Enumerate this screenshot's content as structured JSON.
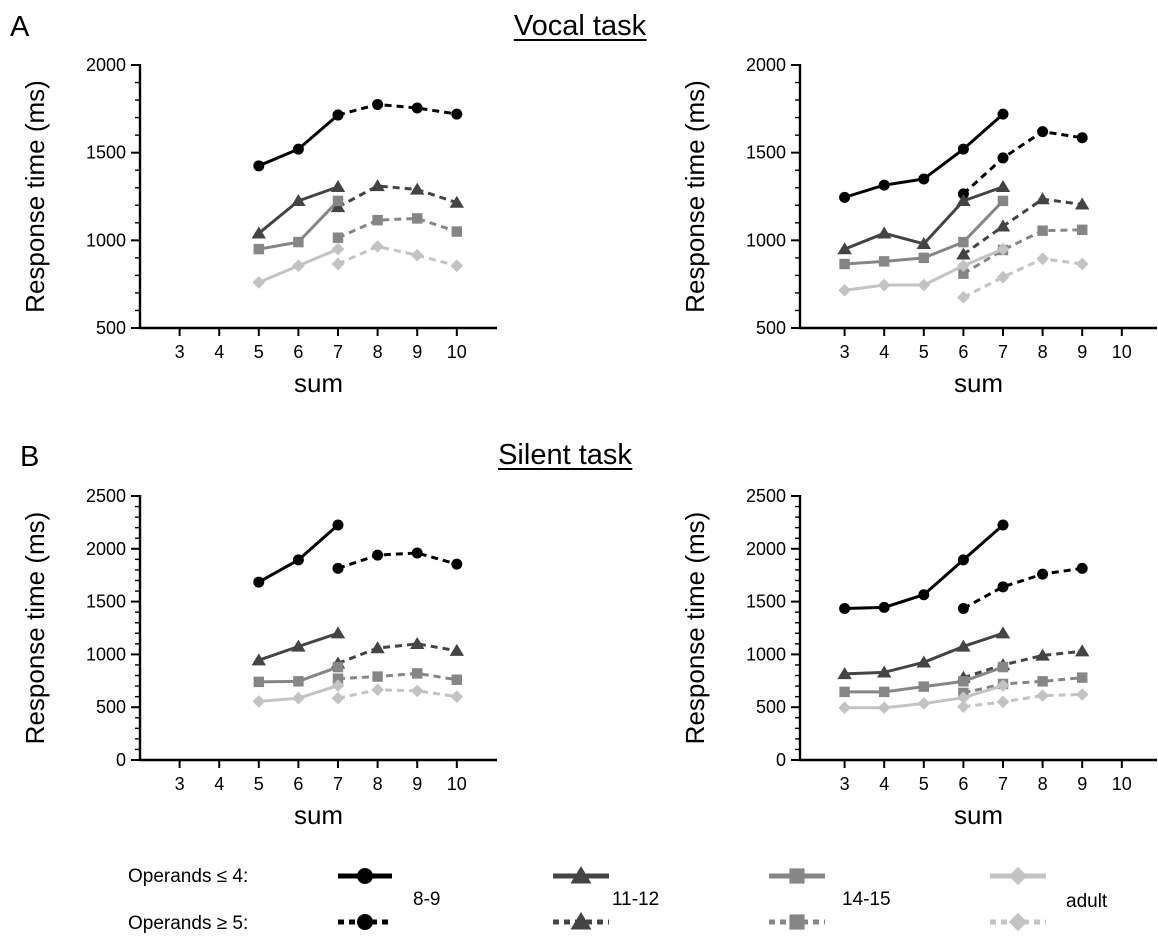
{
  "panel_a": {
    "letter": "A",
    "title": "Vocal task"
  },
  "panel_b": {
    "letter": "B",
    "title": "Silent task"
  },
  "legend": {
    "row1_label": "Operands ≤ 4:",
    "row2_label": "Operands ≥ 5:",
    "groups": [
      "8-9",
      "11-12",
      "14-15",
      "adult"
    ]
  },
  "colors": {
    "8-9": "#000000",
    "11-12": "#444444",
    "14-15": "#868686",
    "adult": "#c3c3c3"
  },
  "markers": {
    "8-9": "circle",
    "11-12": "triangle",
    "14-15": "square",
    "adult": "diamond"
  },
  "chart_data": [
    {
      "id": "vocal-left",
      "type": "line",
      "xlabel": "sum",
      "ylabel": "Response time (ms)",
      "xticks": [
        3,
        4,
        5,
        6,
        7,
        8,
        9,
        10
      ],
      "yticks": [
        500,
        1000,
        1500,
        2000
      ],
      "xlim": [
        2,
        11
      ],
      "ylim": [
        500,
        2000
      ],
      "series": [
        {
          "group": "8-9",
          "style": "solid",
          "x": [
            5,
            6,
            7
          ],
          "y": [
            1425,
            1520,
            1715
          ]
        },
        {
          "group": "8-9",
          "style": "dashed",
          "x": [
            7,
            8,
            9,
            10
          ],
          "y": [
            1715,
            1775,
            1755,
            1720
          ]
        },
        {
          "group": "11-12",
          "style": "solid",
          "x": [
            5,
            6,
            7
          ],
          "y": [
            1040,
            1225,
            1305
          ]
        },
        {
          "group": "11-12",
          "style": "dashed",
          "x": [
            7,
            8,
            9,
            10
          ],
          "y": [
            1190,
            1310,
            1290,
            1215
          ]
        },
        {
          "group": "14-15",
          "style": "solid",
          "x": [
            5,
            6,
            7
          ],
          "y": [
            950,
            990,
            1225
          ]
        },
        {
          "group": "14-15",
          "style": "dashed",
          "x": [
            7,
            8,
            9,
            10
          ],
          "y": [
            1015,
            1115,
            1125,
            1050
          ]
        },
        {
          "group": "adult",
          "style": "solid",
          "x": [
            5,
            6,
            7
          ],
          "y": [
            760,
            855,
            950
          ]
        },
        {
          "group": "adult",
          "style": "dashed",
          "x": [
            7,
            8,
            9,
            10
          ],
          "y": [
            865,
            965,
            915,
            855
          ]
        }
      ]
    },
    {
      "id": "vocal-right",
      "type": "line",
      "xlabel": "sum",
      "ylabel": "Response time (ms)",
      "xticks": [
        3,
        4,
        5,
        6,
        7,
        8,
        9,
        10
      ],
      "yticks": [
        500,
        1000,
        1500,
        2000
      ],
      "xlim": [
        2,
        11
      ],
      "ylim": [
        500,
        2000
      ],
      "series": [
        {
          "group": "8-9",
          "style": "solid",
          "x": [
            3,
            4,
            5,
            6,
            7
          ],
          "y": [
            1245,
            1315,
            1350,
            1520,
            1720
          ]
        },
        {
          "group": "8-9",
          "style": "dashed",
          "x": [
            6,
            7,
            8,
            9
          ],
          "y": [
            1265,
            1470,
            1620,
            1585
          ]
        },
        {
          "group": "11-12",
          "style": "solid",
          "x": [
            3,
            4,
            5,
            6,
            7
          ],
          "y": [
            950,
            1040,
            980,
            1225,
            1305
          ]
        },
        {
          "group": "11-12",
          "style": "dashed",
          "x": [
            6,
            7,
            8,
            9
          ],
          "y": [
            920,
            1080,
            1235,
            1205
          ]
        },
        {
          "group": "14-15",
          "style": "solid",
          "x": [
            3,
            4,
            5,
            6,
            7
          ],
          "y": [
            865,
            880,
            900,
            990,
            1225
          ]
        },
        {
          "group": "14-15",
          "style": "dashed",
          "x": [
            6,
            7,
            8,
            9
          ],
          "y": [
            810,
            945,
            1055,
            1060
          ]
        },
        {
          "group": "adult",
          "style": "solid",
          "x": [
            3,
            4,
            5,
            6,
            7
          ],
          "y": [
            715,
            745,
            745,
            855,
            950
          ]
        },
        {
          "group": "adult",
          "style": "dashed",
          "x": [
            6,
            7,
            8,
            9
          ],
          "y": [
            675,
            790,
            895,
            865
          ]
        }
      ]
    },
    {
      "id": "silent-left",
      "type": "line",
      "xlabel": "sum",
      "ylabel": "Response time (ms)",
      "xticks": [
        3,
        4,
        5,
        6,
        7,
        8,
        9,
        10
      ],
      "yticks": [
        0,
        500,
        1000,
        1500,
        2000,
        2500
      ],
      "xlim": [
        2,
        11
      ],
      "ylim": [
        0,
        2500
      ],
      "series": [
        {
          "group": "8-9",
          "style": "solid",
          "x": [
            5,
            6,
            7
          ],
          "y": [
            1685,
            1895,
            2225
          ]
        },
        {
          "group": "8-9",
          "style": "dashed",
          "x": [
            7,
            8,
            9,
            10
          ],
          "y": [
            1815,
            1940,
            1960,
            1855
          ]
        },
        {
          "group": "11-12",
          "style": "solid",
          "x": [
            5,
            6,
            7
          ],
          "y": [
            945,
            1075,
            1200
          ]
        },
        {
          "group": "11-12",
          "style": "dashed",
          "x": [
            7,
            8,
            9,
            10
          ],
          "y": [
            915,
            1060,
            1100,
            1035
          ]
        },
        {
          "group": "14-15",
          "style": "solid",
          "x": [
            5,
            6,
            7
          ],
          "y": [
            740,
            745,
            880
          ]
        },
        {
          "group": "14-15",
          "style": "dashed",
          "x": [
            7,
            8,
            9,
            10
          ],
          "y": [
            770,
            790,
            820,
            760
          ]
        },
        {
          "group": "adult",
          "style": "solid",
          "x": [
            5,
            6,
            7
          ],
          "y": [
            555,
            585,
            705
          ]
        },
        {
          "group": "adult",
          "style": "dashed",
          "x": [
            7,
            8,
            9,
            10
          ],
          "y": [
            585,
            665,
            655,
            600
          ]
        }
      ]
    },
    {
      "id": "silent-right",
      "type": "line",
      "xlabel": "sum",
      "ylabel": "Response time (ms)",
      "xticks": [
        3,
        4,
        5,
        6,
        7,
        8,
        9,
        10
      ],
      "yticks": [
        0,
        500,
        1000,
        1500,
        2000,
        2500
      ],
      "xlim": [
        2,
        11
      ],
      "ylim": [
        0,
        2500
      ],
      "series": [
        {
          "group": "8-9",
          "style": "solid",
          "x": [
            3,
            4,
            5,
            6,
            7
          ],
          "y": [
            1435,
            1445,
            1565,
            1895,
            2225
          ]
        },
        {
          "group": "8-9",
          "style": "dashed",
          "x": [
            6,
            7,
            8,
            9
          ],
          "y": [
            1435,
            1640,
            1760,
            1815
          ]
        },
        {
          "group": "11-12",
          "style": "solid",
          "x": [
            3,
            4,
            5,
            6,
            7
          ],
          "y": [
            815,
            830,
            925,
            1075,
            1200
          ]
        },
        {
          "group": "11-12",
          "style": "dashed",
          "x": [
            6,
            7,
            8,
            9
          ],
          "y": [
            780,
            900,
            990,
            1030
          ]
        },
        {
          "group": "14-15",
          "style": "solid",
          "x": [
            3,
            4,
            5,
            6,
            7
          ],
          "y": [
            645,
            645,
            695,
            745,
            880
          ]
        },
        {
          "group": "14-15",
          "style": "dashed",
          "x": [
            6,
            7,
            8,
            9
          ],
          "y": [
            635,
            720,
            745,
            780
          ]
        },
        {
          "group": "adult",
          "style": "solid",
          "x": [
            3,
            4,
            5,
            6,
            7
          ],
          "y": [
            495,
            495,
            535,
            590,
            705
          ]
        },
        {
          "group": "adult",
          "style": "dashed",
          "x": [
            6,
            7,
            8,
            9
          ],
          "y": [
            505,
            550,
            610,
            620
          ]
        }
      ]
    }
  ]
}
